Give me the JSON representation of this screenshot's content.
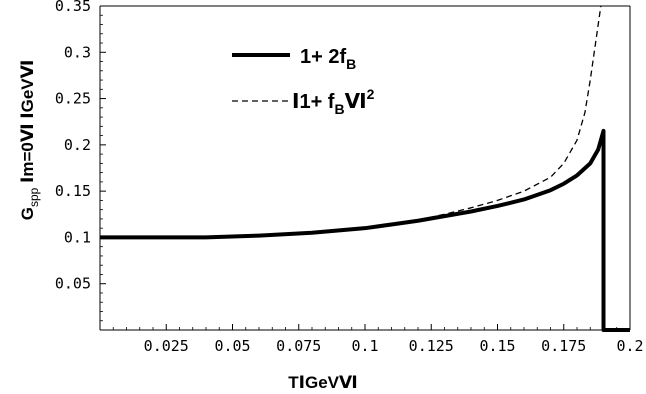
{
  "chart_data": {
    "type": "line",
    "title": "",
    "xlabel": "TⅠGeVⅥ",
    "ylabel": "G",
    "ylabel_sub": "spp",
    "ylabel_rest": " Ⅰm=0Ⅵ ⅠGeVⅥ",
    "xlim": [
      0,
      0.2
    ],
    "ylim": [
      0,
      0.35
    ],
    "x_ticks": [
      0.025,
      0.05,
      0.075,
      0.1,
      0.125,
      0.15,
      0.175,
      0.2
    ],
    "x_tick_labels": [
      "0.025",
      "0.05",
      "0.075",
      "0.1",
      "0.125",
      "0.15",
      "0.175",
      "0.2"
    ],
    "y_ticks": [
      0.05,
      0.1,
      0.15,
      0.2,
      0.25,
      0.3,
      0.35
    ],
    "y_tick_labels": [
      "0.05",
      "0.1",
      "0.15",
      "0.2",
      "0.25",
      "0.3",
      "0.35"
    ],
    "grid": false,
    "legend_position": "top-center",
    "series": [
      {
        "name": "1+ 2f",
        "name_sub": "B",
        "style": "solid",
        "color": "#000000",
        "x": [
          0,
          0.02,
          0.04,
          0.06,
          0.08,
          0.1,
          0.11,
          0.12,
          0.13,
          0.14,
          0.15,
          0.16,
          0.17,
          0.175,
          0.18,
          0.185,
          0.188,
          0.19,
          0.19,
          0.2
        ],
        "y": [
          0.1,
          0.1,
          0.1,
          0.102,
          0.105,
          0.11,
          0.114,
          0.118,
          0.123,
          0.128,
          0.134,
          0.141,
          0.151,
          0.158,
          0.167,
          0.18,
          0.195,
          0.215,
          0,
          0
        ]
      },
      {
        "name": "Ⅰ1+ f",
        "name_sub": "B",
        "name_after": "Ⅵ",
        "name_sup": "2",
        "style": "dashed",
        "color": "#000000",
        "x": [
          0,
          0.04,
          0.06,
          0.08,
          0.1,
          0.12,
          0.13,
          0.14,
          0.15,
          0.16,
          0.17,
          0.175,
          0.18,
          0.183,
          0.185,
          0.187,
          0.188,
          0.189
        ],
        "y": [
          0.1,
          0.1,
          0.102,
          0.105,
          0.11,
          0.119,
          0.125,
          0.132,
          0.14,
          0.15,
          0.165,
          0.18,
          0.205,
          0.235,
          0.27,
          0.31,
          0.33,
          0.35
        ]
      }
    ]
  }
}
